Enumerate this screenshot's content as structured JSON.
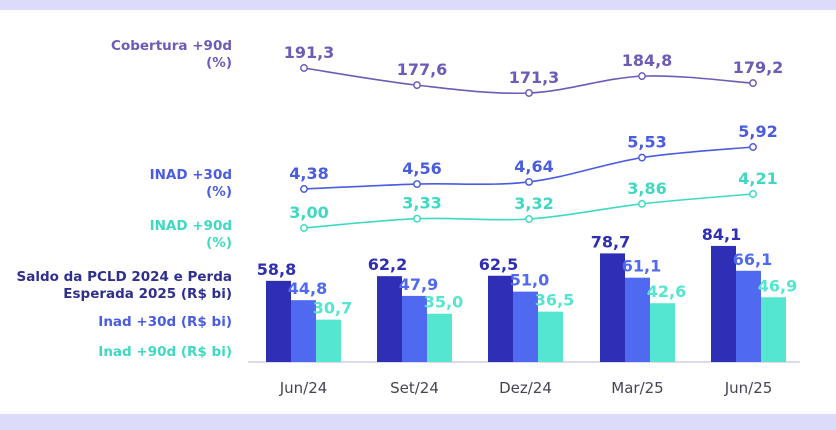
{
  "colors": {
    "coverage": "#6c5cb8",
    "inad30": "#4a5ce0",
    "inad90": "#3fd9c2",
    "bar_pcld": "#2f2fb5",
    "bar_inad30": "#4f6af0",
    "bar_inad90": "#55e6cf",
    "band": "#dcdcfa"
  },
  "labels": {
    "coverage": "Cobertura +90d\n(%)",
    "inad30": "INAD +30d\n(%)",
    "inad90": "INAD +90d\n(%)",
    "pcld": "Saldo da PCLD 2024 e Perda\nEsperada 2025 (R$ bi)",
    "bar_inad30": "Inad +30d (R$ bi)",
    "bar_inad90": "Inad +90d (R$ bi)"
  },
  "chart_data": {
    "type": "bar",
    "categories": [
      "Jun/24",
      "Set/24",
      "Dez/24",
      "Mar/25",
      "Jun/25"
    ],
    "series": [
      {
        "name": "Saldo da PCLD 2024 e Perda Esperada 2025 (R$ bi)",
        "type": "bar",
        "values": [
          58.8,
          62.2,
          62.5,
          78.7,
          84.1
        ],
        "labels": [
          "58,8",
          "62,2",
          "62,5",
          "78,7",
          "84,1"
        ]
      },
      {
        "name": "Inad +30d (R$ bi)",
        "type": "bar",
        "values": [
          44.8,
          47.9,
          51.0,
          61.1,
          66.1
        ],
        "labels": [
          "44,8",
          "47,9",
          "51,0",
          "61,1",
          "66,1"
        ]
      },
      {
        "name": "Inad +90d (R$ bi)",
        "type": "bar",
        "values": [
          30.7,
          35.0,
          36.5,
          42.6,
          46.9
        ],
        "labels": [
          "30,7",
          "35,0",
          "36,5",
          "42,6",
          "46,9"
        ]
      },
      {
        "name": "Cobertura +90d (%)",
        "type": "line",
        "values": [
          191.3,
          177.6,
          171.3,
          184.8,
          179.2
        ],
        "labels": [
          "191,3",
          "177,6",
          "171,3",
          "184,8",
          "179,2"
        ]
      },
      {
        "name": "INAD +30d (%)",
        "type": "line",
        "values": [
          4.38,
          4.56,
          4.64,
          5.53,
          5.92
        ],
        "labels": [
          "4,38",
          "4,56",
          "4,64",
          "5,53",
          "5,92"
        ]
      },
      {
        "name": "INAD +90d (%)",
        "type": "line",
        "values": [
          3.0,
          3.33,
          3.32,
          3.86,
          4.21
        ],
        "labels": [
          "3,00",
          "3,33",
          "3,32",
          "3,86",
          "4,21"
        ]
      }
    ]
  }
}
